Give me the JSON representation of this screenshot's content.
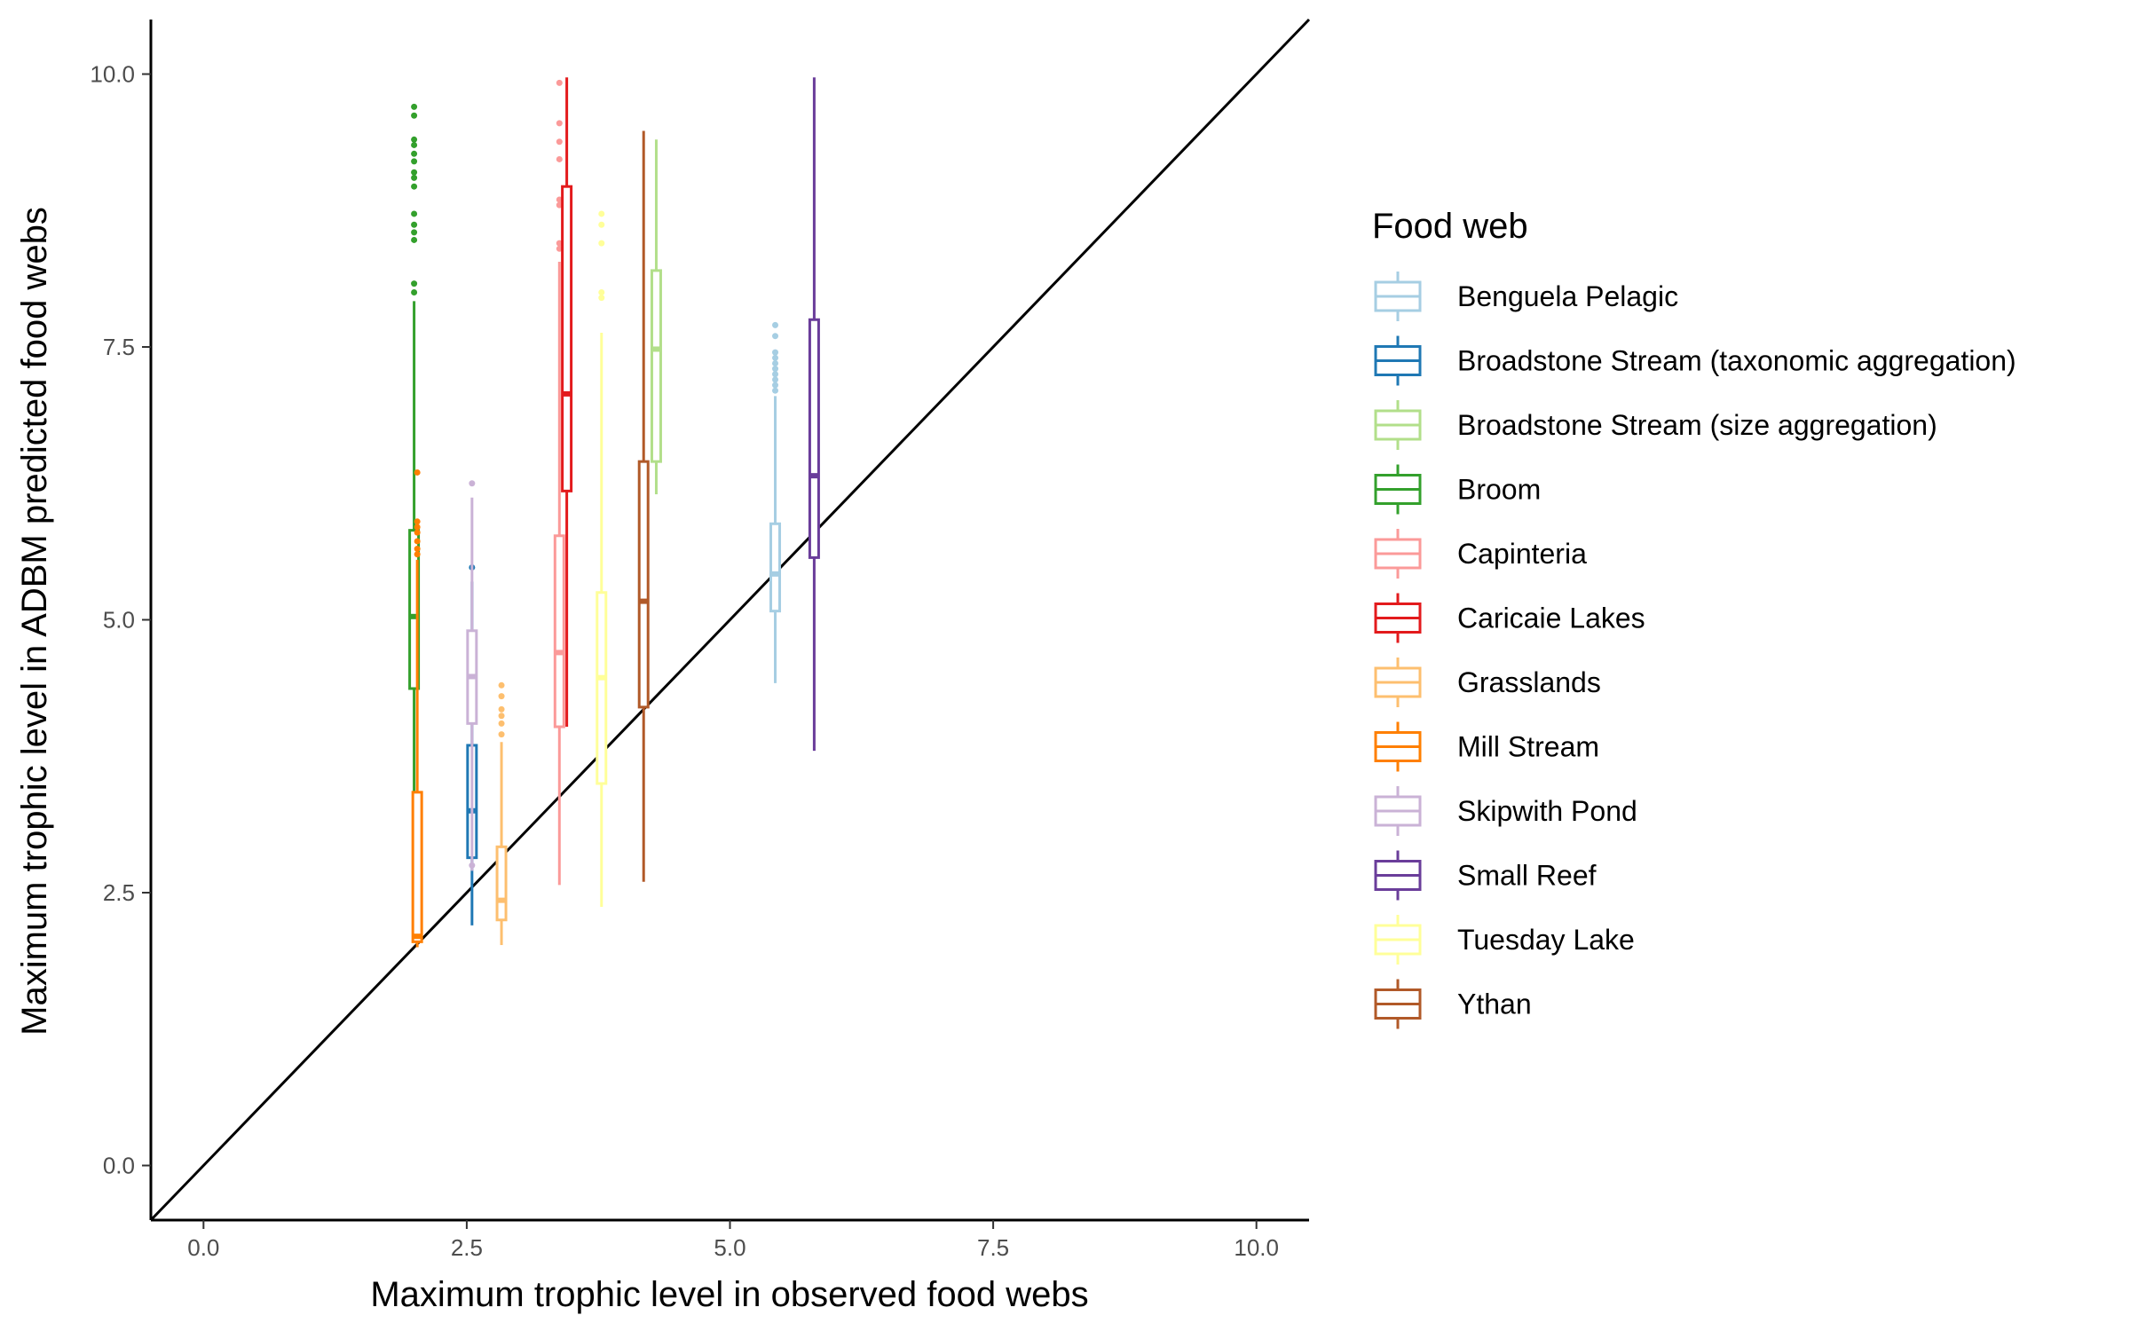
{
  "chart_data": {
    "type": "boxplot",
    "xlabel": "Maximum trophic level in observed food webs",
    "ylabel": "Maximum trophic level in ADBM predicted food webs",
    "xlim": [
      -0.5,
      10.5
    ],
    "ylim": [
      -0.5,
      10.5
    ],
    "x_ticks": [
      {
        "value": 0,
        "label": "0.0"
      },
      {
        "value": 2.5,
        "label": "2.5"
      },
      {
        "value": 5,
        "label": "5.0"
      },
      {
        "value": 7.5,
        "label": "7.5"
      },
      {
        "value": 10,
        "label": "10.0"
      }
    ],
    "y_ticks": [
      {
        "value": 0,
        "label": "0.0"
      },
      {
        "value": 2.5,
        "label": "2.5"
      },
      {
        "value": 5,
        "label": "5.0"
      },
      {
        "value": 7.5,
        "label": "7.5"
      },
      {
        "value": 10,
        "label": "10.0"
      }
    ],
    "reference_line": {
      "type": "y = x",
      "color": "#000000"
    },
    "grid": false,
    "legend": {
      "title": "Food web",
      "position": "right"
    },
    "series": [
      {
        "name": "Benguela Pelagic",
        "color": "#a6cee3",
        "x": 5.43,
        "whisker_low": 4.42,
        "q1": 5.08,
        "median": 5.42,
        "q3": 5.88,
        "whisker_high": 7.05,
        "outliers": [
          7.1,
          7.15,
          7.2,
          7.25,
          7.3,
          7.35,
          7.4,
          7.45,
          7.6,
          7.7
        ]
      },
      {
        "name": "Broadstone Stream (taxonomic aggregation)",
        "color": "#1f78b4",
        "x": 2.55,
        "whisker_low": 2.2,
        "q1": 2.82,
        "median": 3.25,
        "q3": 3.85,
        "whisker_high": 5.35,
        "outliers": [
          5.48
        ]
      },
      {
        "name": "Broadstone Stream (size aggregation)",
        "color": "#b2df8a",
        "x": 4.3,
        "whisker_low": 6.15,
        "q1": 6.45,
        "median": 7.48,
        "q3": 8.2,
        "whisker_high": 9.4,
        "outliers": []
      },
      {
        "name": "Broom",
        "color": "#33a02c",
        "x": 2.0,
        "whisker_low": 2.97,
        "q1": 4.37,
        "median": 5.03,
        "q3": 5.82,
        "whisker_high": 7.92,
        "outliers": [
          8.0,
          8.08,
          8.48,
          8.55,
          8.62,
          8.72,
          8.97,
          9.05,
          9.1,
          9.2,
          9.27,
          9.35,
          9.4,
          9.62,
          9.7
        ]
      },
      {
        "name": "Capinteria",
        "color": "#fb9a99",
        "x": 3.38,
        "whisker_low": 2.57,
        "q1": 4.02,
        "median": 4.7,
        "q3": 5.77,
        "whisker_high": 8.28,
        "outliers": [
          8.4,
          8.45,
          8.8,
          8.85,
          9.22,
          9.38,
          9.55,
          9.92
        ]
      },
      {
        "name": "Caricaie Lakes",
        "color": "#e31a1c",
        "x": 3.45,
        "whisker_low": 4.02,
        "q1": 6.18,
        "median": 7.07,
        "q3": 8.97,
        "whisker_high": 9.97,
        "outliers": []
      },
      {
        "name": "Grasslands",
        "color": "#fdbf6f",
        "x": 2.83,
        "whisker_low": 2.02,
        "q1": 2.25,
        "median": 2.43,
        "q3": 2.92,
        "whisker_high": 3.88,
        "outliers": [
          3.95,
          4.05,
          4.12,
          4.18,
          4.3,
          4.4
        ]
      },
      {
        "name": "Mill Stream",
        "color": "#ff7f00",
        "x": 2.03,
        "whisker_low": 2.0,
        "q1": 2.05,
        "median": 2.1,
        "q3": 3.42,
        "whisker_high": 5.55,
        "outliers": [
          5.6,
          5.65,
          5.72,
          5.8,
          5.85,
          5.9,
          6.35
        ]
      },
      {
        "name": "Skipwith Pond",
        "color": "#cab2d6",
        "x": 2.55,
        "whisker_low": 2.7,
        "q1": 4.05,
        "median": 4.48,
        "q3": 4.9,
        "whisker_high": 6.12,
        "outliers": [
          6.25,
          2.75
        ]
      },
      {
        "name": "Small Reef",
        "color": "#6a3d9a",
        "x": 5.8,
        "whisker_low": 3.8,
        "q1": 5.57,
        "median": 6.32,
        "q3": 7.75,
        "whisker_high": 9.97,
        "outliers": []
      },
      {
        "name": "Tuesday Lake",
        "color": "#ffff99",
        "x": 3.78,
        "whisker_low": 2.37,
        "q1": 3.5,
        "median": 4.47,
        "q3": 5.25,
        "whisker_high": 7.63,
        "outliers": [
          7.95,
          8.0,
          8.45,
          8.62,
          8.72
        ]
      },
      {
        "name": "Ythan",
        "color": "#b15928",
        "x": 4.18,
        "whisker_low": 2.6,
        "q1": 4.2,
        "median": 5.17,
        "q3": 6.45,
        "whisker_high": 9.48,
        "outliers": []
      }
    ]
  }
}
